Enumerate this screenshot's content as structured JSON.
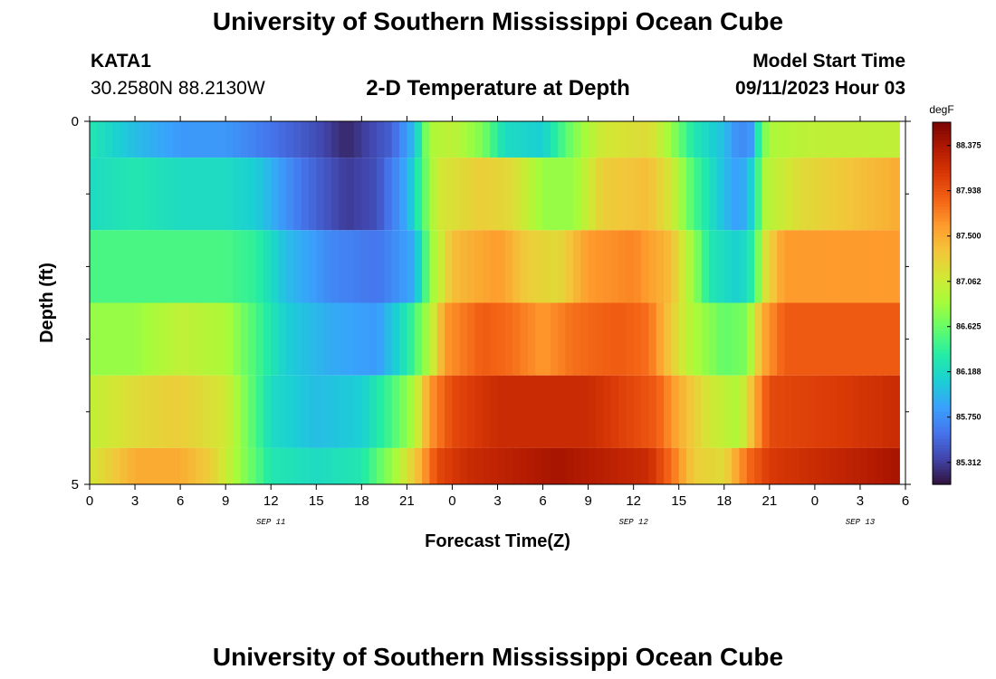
{
  "page": {
    "title": "University of Southern Mississippi Ocean Cube",
    "station": "KATA1",
    "coords": "30.2580N  88.2130W",
    "chart_title": "2-D Temperature at Depth",
    "model_label": "Model Start Time",
    "model_time": "09/11/2023 Hour 03",
    "footer_title": "University of Southern Mississippi Ocean Cube"
  },
  "colors": {
    "colormap": [
      "#30123b",
      "#4145ab",
      "#4675ed",
      "#39a2fc",
      "#1bcfd4",
      "#24eca6",
      "#61fc6c",
      "#a4fc3b",
      "#d1e834",
      "#f3c63a",
      "#fe9b2d",
      "#f36315",
      "#d93806",
      "#b11901",
      "#7a0402"
    ]
  },
  "chart_data": {
    "type": "heatmap",
    "xlabel": "Forecast Time(Z)",
    "ylabel": "Depth (ft)",
    "units": "degF",
    "xlim": [
      0,
      54
    ],
    "ylim": [
      0,
      5
    ],
    "x_ticks": [
      0,
      3,
      6,
      9,
      12,
      15,
      18,
      21,
      24,
      27,
      30,
      33,
      36,
      39,
      42,
      45,
      48,
      51,
      54
    ],
    "x_tick_labels": [
      "0",
      "3",
      "6",
      "9",
      "12",
      "15",
      "18",
      "21",
      "0",
      "3",
      "6",
      "9",
      "12",
      "15",
      "18",
      "21",
      "0",
      "3",
      "6"
    ],
    "date_labels": [
      {
        "x": 12,
        "label": "SEP 11"
      },
      {
        "x": 36,
        "label": "SEP 12"
      },
      {
        "x": 51,
        "label": "SEP 13"
      }
    ],
    "y_tick_labels": [
      {
        "y": 0,
        "label": "0"
      },
      {
        "y": 5,
        "label": "5"
      }
    ],
    "y_minor_ticks": [
      1,
      2,
      3,
      4
    ],
    "colorbar": {
      "min": 85.1,
      "max": 88.6,
      "ticks": [
        88.375,
        87.938,
        87.5,
        87.062,
        86.625,
        86.188,
        85.75,
        85.312
      ]
    },
    "rows": [
      {
        "depth": [
          0,
          0.5
        ],
        "key": [
          [
            0,
            86.3
          ],
          [
            3,
            86.0
          ],
          [
            6,
            85.8
          ],
          [
            9,
            85.8
          ],
          [
            12,
            85.6
          ],
          [
            15,
            85.4
          ],
          [
            17,
            85.2
          ],
          [
            20,
            85.5
          ],
          [
            21.5,
            86.0
          ],
          [
            22.5,
            86.9
          ],
          [
            24,
            87.0
          ],
          [
            26,
            86.7
          ],
          [
            27.5,
            86.2
          ],
          [
            30,
            86.1
          ],
          [
            32,
            86.7
          ],
          [
            34,
            87.1
          ],
          [
            37,
            87.2
          ],
          [
            38.5,
            86.8
          ],
          [
            40,
            86.3
          ],
          [
            42,
            86.0
          ],
          [
            43,
            85.7
          ],
          [
            43.8,
            85.8
          ],
          [
            44.4,
            86.5
          ],
          [
            45,
            86.9
          ],
          [
            48,
            87.0
          ],
          [
            53.5,
            87.0
          ]
        ]
      },
      {
        "depth": [
          0.5,
          1.5
        ],
        "key": [
          [
            0,
            86.2
          ],
          [
            3,
            86.3
          ],
          [
            6,
            86.2
          ],
          [
            9,
            86.2
          ],
          [
            11,
            86.1
          ],
          [
            14,
            85.6
          ],
          [
            17,
            85.3
          ],
          [
            19,
            85.4
          ],
          [
            21,
            85.9
          ],
          [
            22.2,
            86.6
          ],
          [
            23,
            87.1
          ],
          [
            26,
            87.3
          ],
          [
            28,
            87.2
          ],
          [
            30,
            86.8
          ],
          [
            32,
            86.8
          ],
          [
            34,
            87.3
          ],
          [
            37,
            87.4
          ],
          [
            38.5,
            87.1
          ],
          [
            40,
            86.5
          ],
          [
            42,
            86.0
          ],
          [
            43,
            85.8
          ],
          [
            44,
            86.2
          ],
          [
            44.6,
            86.9
          ],
          [
            47,
            87.2
          ],
          [
            53.5,
            87.5
          ]
        ]
      },
      {
        "depth": [
          1.5,
          2.5
        ],
        "key": [
          [
            0,
            86.5
          ],
          [
            3,
            86.5
          ],
          [
            6,
            86.5
          ],
          [
            9,
            86.5
          ],
          [
            11,
            86.4
          ],
          [
            13,
            86.0
          ],
          [
            16,
            85.7
          ],
          [
            19,
            85.6
          ],
          [
            21.5,
            85.9
          ],
          [
            22.6,
            86.8
          ],
          [
            24,
            87.4
          ],
          [
            27,
            87.6
          ],
          [
            29,
            87.3
          ],
          [
            31,
            87.2
          ],
          [
            33,
            87.6
          ],
          [
            36,
            87.7
          ],
          [
            38.5,
            87.4
          ],
          [
            40,
            86.8
          ],
          [
            41,
            86.3
          ],
          [
            43,
            86.1
          ],
          [
            44,
            86.4
          ],
          [
            44.6,
            87.1
          ],
          [
            46,
            87.6
          ],
          [
            53.5,
            87.6
          ]
        ]
      },
      {
        "depth": [
          2.5,
          3.5
        ],
        "key": [
          [
            0,
            86.8
          ],
          [
            3,
            86.8
          ],
          [
            6,
            87.0
          ],
          [
            9,
            86.9
          ],
          [
            11,
            86.5
          ],
          [
            13,
            86.1
          ],
          [
            16,
            85.9
          ],
          [
            19,
            85.8
          ],
          [
            21,
            86.3
          ],
          [
            22.5,
            86.9
          ],
          [
            23.5,
            87.6
          ],
          [
            26,
            87.9
          ],
          [
            28,
            87.8
          ],
          [
            30,
            87.6
          ],
          [
            32,
            87.8
          ],
          [
            35,
            87.9
          ],
          [
            37,
            87.8
          ],
          [
            38.5,
            87.3
          ],
          [
            40,
            86.9
          ],
          [
            42,
            86.6
          ],
          [
            43.5,
            86.7
          ],
          [
            44.5,
            87.5
          ],
          [
            46,
            87.9
          ],
          [
            53.5,
            87.9
          ]
        ]
      },
      {
        "depth": [
          3.5,
          4.5
        ],
        "key": [
          [
            0,
            87.0
          ],
          [
            3,
            87.2
          ],
          [
            6,
            87.3
          ],
          [
            9,
            87.1
          ],
          [
            10,
            86.8
          ],
          [
            12,
            86.2
          ],
          [
            15,
            86.0
          ],
          [
            18,
            86.1
          ],
          [
            20,
            86.5
          ],
          [
            21.5,
            86.9
          ],
          [
            22.5,
            87.6
          ],
          [
            24,
            88.0
          ],
          [
            27,
            88.2
          ],
          [
            30,
            88.2
          ],
          [
            33,
            88.2
          ],
          [
            36,
            88.0
          ],
          [
            37.5,
            87.9
          ],
          [
            39,
            87.5
          ],
          [
            41,
            87.1
          ],
          [
            43,
            86.9
          ],
          [
            44,
            87.5
          ],
          [
            45,
            88.0
          ],
          [
            50,
            88.1
          ],
          [
            53.5,
            88.2
          ]
        ]
      },
      {
        "depth": [
          4.5,
          5
        ],
        "key": [
          [
            0,
            87.1
          ],
          [
            1.5,
            87.3
          ],
          [
            3,
            87.5
          ],
          [
            6,
            87.5
          ],
          [
            8,
            87.3
          ],
          [
            10,
            86.8
          ],
          [
            12,
            86.3
          ],
          [
            15,
            86.2
          ],
          [
            18,
            86.3
          ],
          [
            20,
            86.8
          ],
          [
            21.5,
            87.3
          ],
          [
            23,
            88.0
          ],
          [
            25,
            88.2
          ],
          [
            28,
            88.3
          ],
          [
            31,
            88.4
          ],
          [
            34,
            88.3
          ],
          [
            37,
            88.2
          ],
          [
            38.5,
            87.8
          ],
          [
            40,
            87.3
          ],
          [
            42,
            87.2
          ],
          [
            43.5,
            87.8
          ],
          [
            45,
            88.1
          ],
          [
            51,
            88.3
          ],
          [
            53.5,
            88.4
          ]
        ]
      }
    ]
  }
}
